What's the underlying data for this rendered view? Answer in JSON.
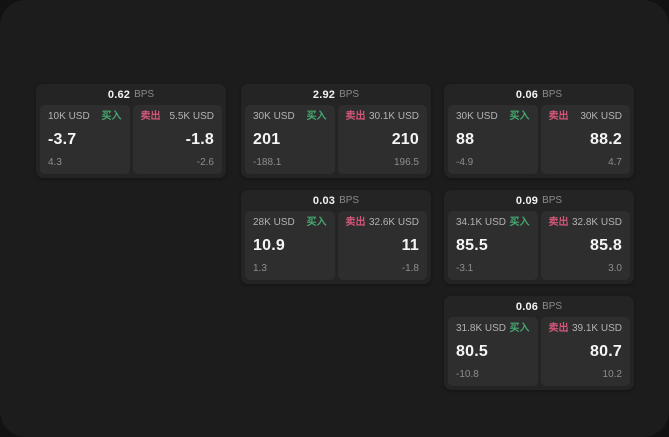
{
  "labels": {
    "bps_unit": "BPS",
    "buy": "买入",
    "sell": "卖出"
  },
  "colors": {
    "buy_accent": "#46a871",
    "sell_accent": "#d45578",
    "panel_bg": "#1c1c1c",
    "card_bg": "#242424",
    "subcard_bg": "#2e2e2e"
  },
  "cards": [
    {
      "bps": "0.62",
      "buy": {
        "amount": "10K USD",
        "value": "-3.7",
        "delta": "4.3"
      },
      "sell": {
        "amount": "5.5K USD",
        "value": "-1.8",
        "delta": "-2.6"
      }
    },
    {
      "bps": "2.92",
      "buy": {
        "amount": "30K USD",
        "value": "201",
        "delta": "-188.1"
      },
      "sell": {
        "amount": "30.1K USD",
        "value": "210",
        "delta": "196.5"
      }
    },
    {
      "bps": "0.06",
      "buy": {
        "amount": "30K USD",
        "value": "88",
        "delta": "-4.9"
      },
      "sell": {
        "amount": "30K USD",
        "value": "88.2",
        "delta": "4.7"
      }
    },
    {
      "bps": "0.03",
      "buy": {
        "amount": "28K USD",
        "value": "10.9",
        "delta": "1.3"
      },
      "sell": {
        "amount": "32.6K USD",
        "value": "11",
        "delta": "-1.8"
      }
    },
    {
      "bps": "0.09",
      "buy": {
        "amount": "34.1K USD",
        "value": "85.5",
        "delta": "-3.1"
      },
      "sell": {
        "amount": "32.8K USD",
        "value": "85.8",
        "delta": "3.0"
      }
    },
    {
      "bps": "0.06",
      "buy": {
        "amount": "31.8K USD",
        "value": "80.5",
        "delta": "-10.8"
      },
      "sell": {
        "amount": "39.1K USD",
        "value": "80.7",
        "delta": "10.2"
      }
    }
  ]
}
